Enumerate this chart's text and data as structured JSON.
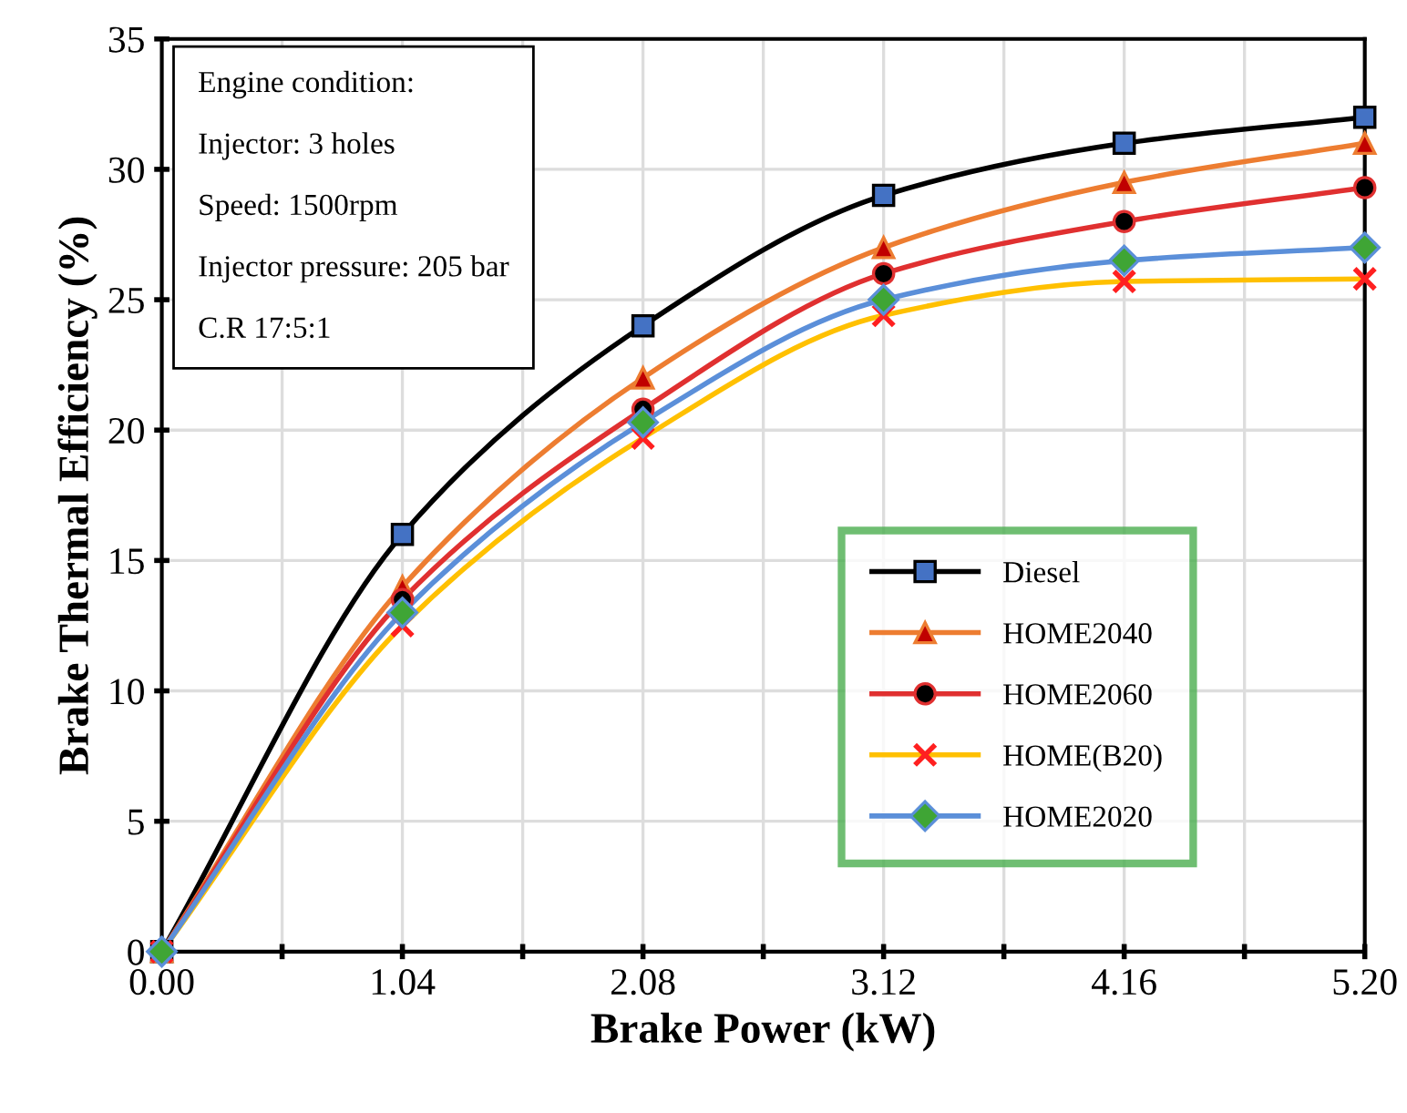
{
  "chart_data": {
    "type": "line",
    "xlabel": "Brake Power (kW)",
    "ylabel": "Brake Thermal Efficiency (%)",
    "x": [
      0.0,
      1.04,
      2.08,
      3.12,
      4.16,
      5.2
    ],
    "series": [
      {
        "name": "Diesel",
        "color": "#000000",
        "marker": "square",
        "values": [
          0,
          16,
          24,
          29,
          31,
          32
        ]
      },
      {
        "name": "HOME2040",
        "color": "#ed7d31",
        "marker": "triangle",
        "values": [
          0,
          14,
          22,
          27,
          29.5,
          31
        ]
      },
      {
        "name": "HOME2060",
        "color": "#e03030",
        "marker": "circle",
        "values": [
          0,
          13.5,
          20.8,
          26,
          28,
          29.3
        ]
      },
      {
        "name": "HOME(B20)",
        "color": "#ffc000",
        "marker": "cross",
        "values": [
          0,
          12.5,
          19.7,
          24.4,
          25.7,
          25.8
        ]
      },
      {
        "name": "HOME2020",
        "color": "#5b8fd9",
        "marker": "diamond",
        "values": [
          0,
          13,
          20.3,
          25,
          26.5,
          27
        ]
      }
    ],
    "xlim": [
      0,
      5.2
    ],
    "ylim": [
      0,
      35
    ],
    "xticks": [
      {
        "value": 0,
        "label": "0.00"
      },
      {
        "value": 0.52,
        "label": null
      },
      {
        "value": 1.04,
        "label": "1.04"
      },
      {
        "value": 1.56,
        "label": null
      },
      {
        "value": 2.08,
        "label": "2.08"
      },
      {
        "value": 2.6,
        "label": null
      },
      {
        "value": 3.12,
        "label": "3.12"
      },
      {
        "value": 3.64,
        "label": null
      },
      {
        "value": 4.16,
        "label": "4.16"
      },
      {
        "value": 4.68,
        "label": null
      },
      {
        "value": 5.2,
        "label": "5.20"
      }
    ],
    "yticks": [
      0,
      5,
      10,
      15,
      20,
      25,
      30,
      35
    ],
    "grid": true,
    "legend": "bottom right",
    "annotations": [
      "Engine condition:",
      "Injector: 3 holes",
      "Speed: 1500rpm",
      "Injector pressure: 205 bar",
      "C.R 17:5:1"
    ]
  }
}
